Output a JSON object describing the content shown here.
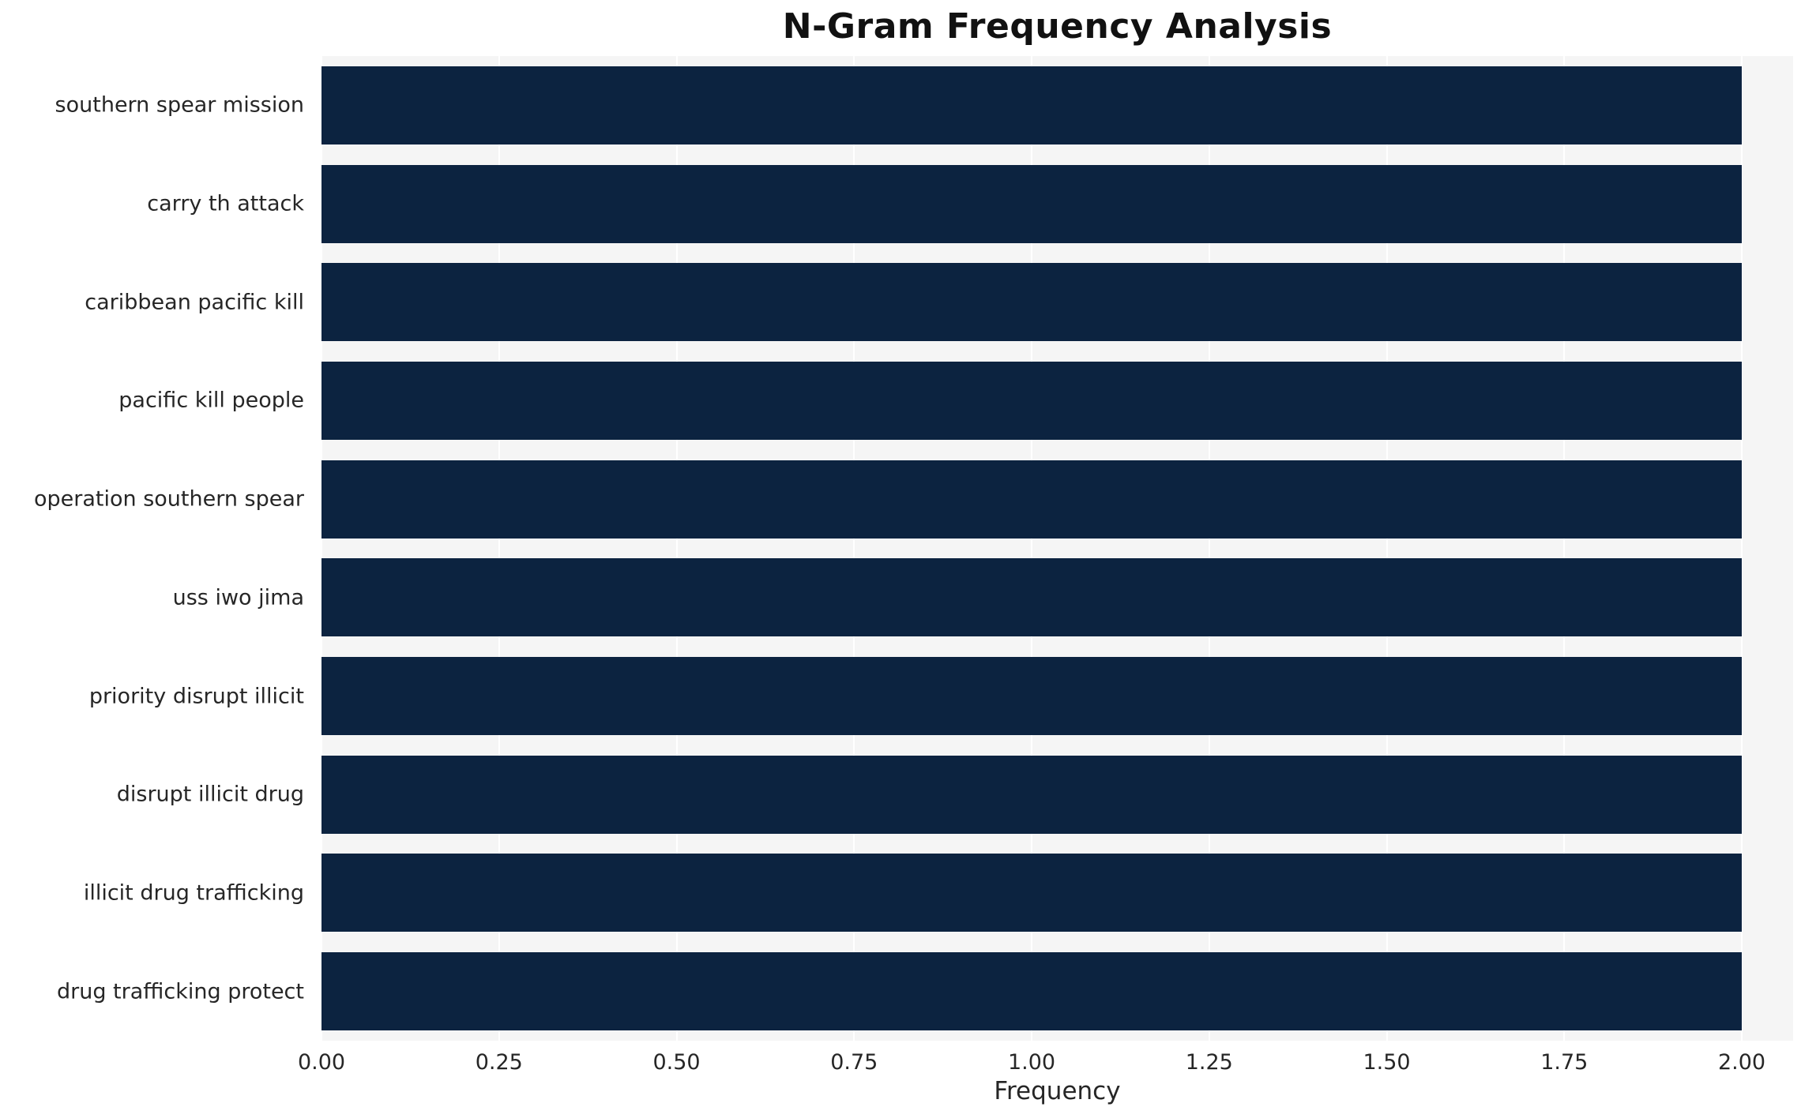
{
  "chart_data": {
    "type": "bar",
    "orientation": "horizontal",
    "title": "N-Gram Frequency Analysis",
    "xlabel": "Frequency",
    "ylabel": "",
    "categories": [
      "southern spear mission",
      "carry th attack",
      "caribbean pacific kill",
      "pacific kill people",
      "operation southern spear",
      "uss iwo jima",
      "priority disrupt illicit",
      "disrupt illicit drug",
      "illicit drug trafficking",
      "drug trafficking protect"
    ],
    "values": [
      2.0,
      2.0,
      2.0,
      2.0,
      2.0,
      2.0,
      2.0,
      2.0,
      2.0,
      2.0
    ],
    "xlim": [
      0.0,
      2.0
    ],
    "xticks": [
      0.0,
      0.25,
      0.5,
      0.75,
      1.0,
      1.25,
      1.5,
      1.75,
      2.0
    ],
    "xtick_labels": [
      "0.00",
      "0.25",
      "0.50",
      "0.75",
      "1.00",
      "1.25",
      "1.50",
      "1.75",
      "2.00"
    ],
    "grid": true,
    "legend": false,
    "colors": {
      "bar": "#0c2340",
      "plot_background": "#f5f5f5",
      "gridline": "#ffffff",
      "title_text": "#111111",
      "tick_text": "#262626"
    }
  }
}
